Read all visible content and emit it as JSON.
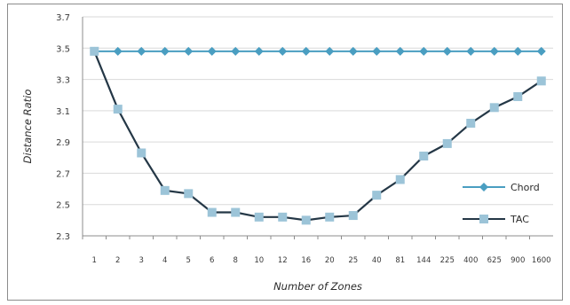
{
  "chart_data": {
    "type": "line",
    "title": "",
    "xlabel": "Number of Zones",
    "ylabel": "Distance Ratio",
    "categories": [
      "1",
      "2",
      "3",
      "4",
      "5",
      "6",
      "8",
      "10",
      "12",
      "16",
      "20",
      "25",
      "40",
      "81",
      "144",
      "225",
      "400",
      "625",
      "900",
      "1600"
    ],
    "ylim": [
      2.3,
      3.7
    ],
    "yticks": [
      "2.3",
      "2.5",
      "2.7",
      "2.9",
      "3.1",
      "3.3",
      "3.5",
      "3.7"
    ],
    "grid": "horizontal",
    "legend_position": "right",
    "series": [
      {
        "name": "Chord",
        "color": "#4a9ec1",
        "marker": "diamond",
        "values": [
          3.48,
          3.48,
          3.48,
          3.48,
          3.48,
          3.48,
          3.48,
          3.48,
          3.48,
          3.48,
          3.48,
          3.48,
          3.48,
          3.48,
          3.48,
          3.48,
          3.48,
          3.48,
          3.48,
          3.48
        ]
      },
      {
        "name": "TAC",
        "color": "#243746",
        "marker_color": "#9cc4d8",
        "marker": "square",
        "values": [
          3.48,
          3.11,
          2.83,
          2.59,
          2.57,
          2.45,
          2.45,
          2.42,
          2.42,
          2.4,
          2.42,
          2.43,
          2.56,
          2.66,
          2.81,
          2.89,
          3.02,
          3.12,
          3.19,
          3.29
        ]
      }
    ]
  }
}
